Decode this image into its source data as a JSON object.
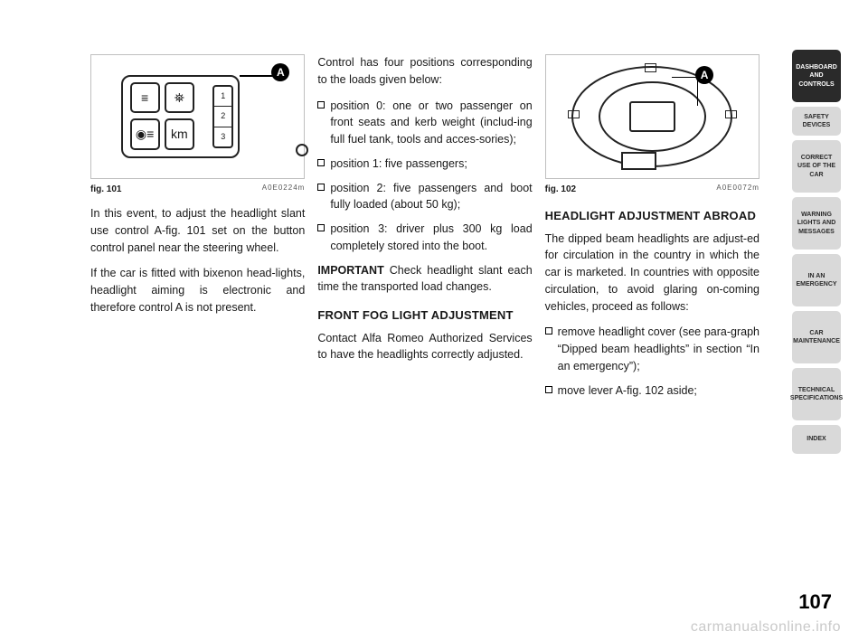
{
  "page_number": "107",
  "watermark": "carmanualsonline.info",
  "tabs": [
    {
      "label": "DASHBOARD AND CONTROLS",
      "style": "dark"
    },
    {
      "label": "SAFETY DEVICES",
      "style": "light",
      "short": true
    },
    {
      "label": "CORRECT USE OF THE CAR",
      "style": "light"
    },
    {
      "label": "WARNING LIGHTS AND MESSAGES",
      "style": "light"
    },
    {
      "label": "IN AN EMERGENCY",
      "style": "light"
    },
    {
      "label": "CAR MAINTENANCE",
      "style": "light"
    },
    {
      "label": "TECHNICAL SPECIFICATIONS",
      "style": "light"
    },
    {
      "label": "INDEX",
      "style": "light",
      "short": true
    }
  ],
  "figures": {
    "f101": {
      "caption": "fig. 101",
      "code": "A0E0224m",
      "callout": "A",
      "slider": [
        "1",
        "2",
        "3"
      ],
      "btn4_label": "km"
    },
    "f102": {
      "caption": "fig. 102",
      "code": "A0E0072m",
      "callout": "A"
    }
  },
  "col1": {
    "p1": "In this event, to adjust the headlight slant use control A-fig. 101 set on the button control panel near the steering wheel.",
    "p2": "If the car is fitted with bixenon head-lights, headlight aiming is electronic and therefore control A is not present."
  },
  "col2": {
    "intro": "Control has four positions corresponding to the loads given below:",
    "b1": "position 0: one or two passenger on front seats and kerb weight (includ-ing full fuel tank, tools and acces-sories);",
    "b2": "position 1: five passengers;",
    "b3": "position 2: five passengers and boot fully loaded (about 50 kg);",
    "b4": "position 3: driver plus 300 kg load completely stored into the boot.",
    "important_label": "IMPORTANT",
    "important_text": " Check headlight slant each time the transported load changes.",
    "heading": "FRONT FOG LIGHT ADJUSTMENT",
    "p_fog": "Contact Alfa Romeo Authorized Services to have the headlights correctly adjusted."
  },
  "col3": {
    "heading": "HEADLIGHT ADJUSTMENT ABROAD",
    "p1": "The dipped beam headlights are adjust-ed for circulation in the country in which the car is marketed. In countries with opposite circulation, to avoid glaring on-coming vehicles, proceed as follows:",
    "b1": "remove headlight cover (see para-graph “Dipped beam headlights” in section “In an emergency”);",
    "b2": "move lever A-fig. 102 aside;"
  }
}
